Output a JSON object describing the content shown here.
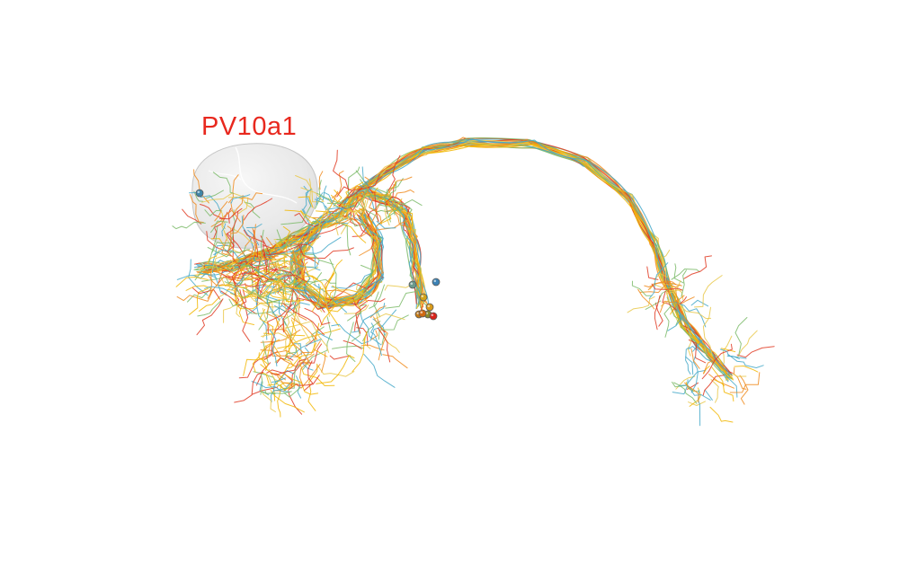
{
  "label": {
    "text": "PV10a1",
    "color": "#e8281e"
  },
  "neuropil": {
    "name": "grey-translucent-neuropil-sphere",
    "fill": "#d7d7d7",
    "stroke": "#c6c6c6"
  },
  "neuron_colors": [
    "#f2b705",
    "#46a9c9",
    "#e03a22",
    "#e9c84a",
    "#7dbb6a",
    "#f08b1d"
  ],
  "somata": [
    {
      "name": "soma-left-blue",
      "color": "#3f86a8"
    },
    {
      "name": "soma-blue",
      "color": "#3c82b5"
    },
    {
      "name": "soma-teal",
      "color": "#6a9a8c"
    },
    {
      "name": "soma-yellow",
      "color": "#d1a31b"
    },
    {
      "name": "soma-orange-1",
      "color": "#c77a12"
    },
    {
      "name": "soma-olive",
      "color": "#8a8a2a"
    },
    {
      "name": "soma-gold",
      "color": "#d99a1a"
    },
    {
      "name": "soma-orange-2",
      "color": "#d06a12"
    },
    {
      "name": "soma-red",
      "color": "#d8241c"
    }
  ]
}
